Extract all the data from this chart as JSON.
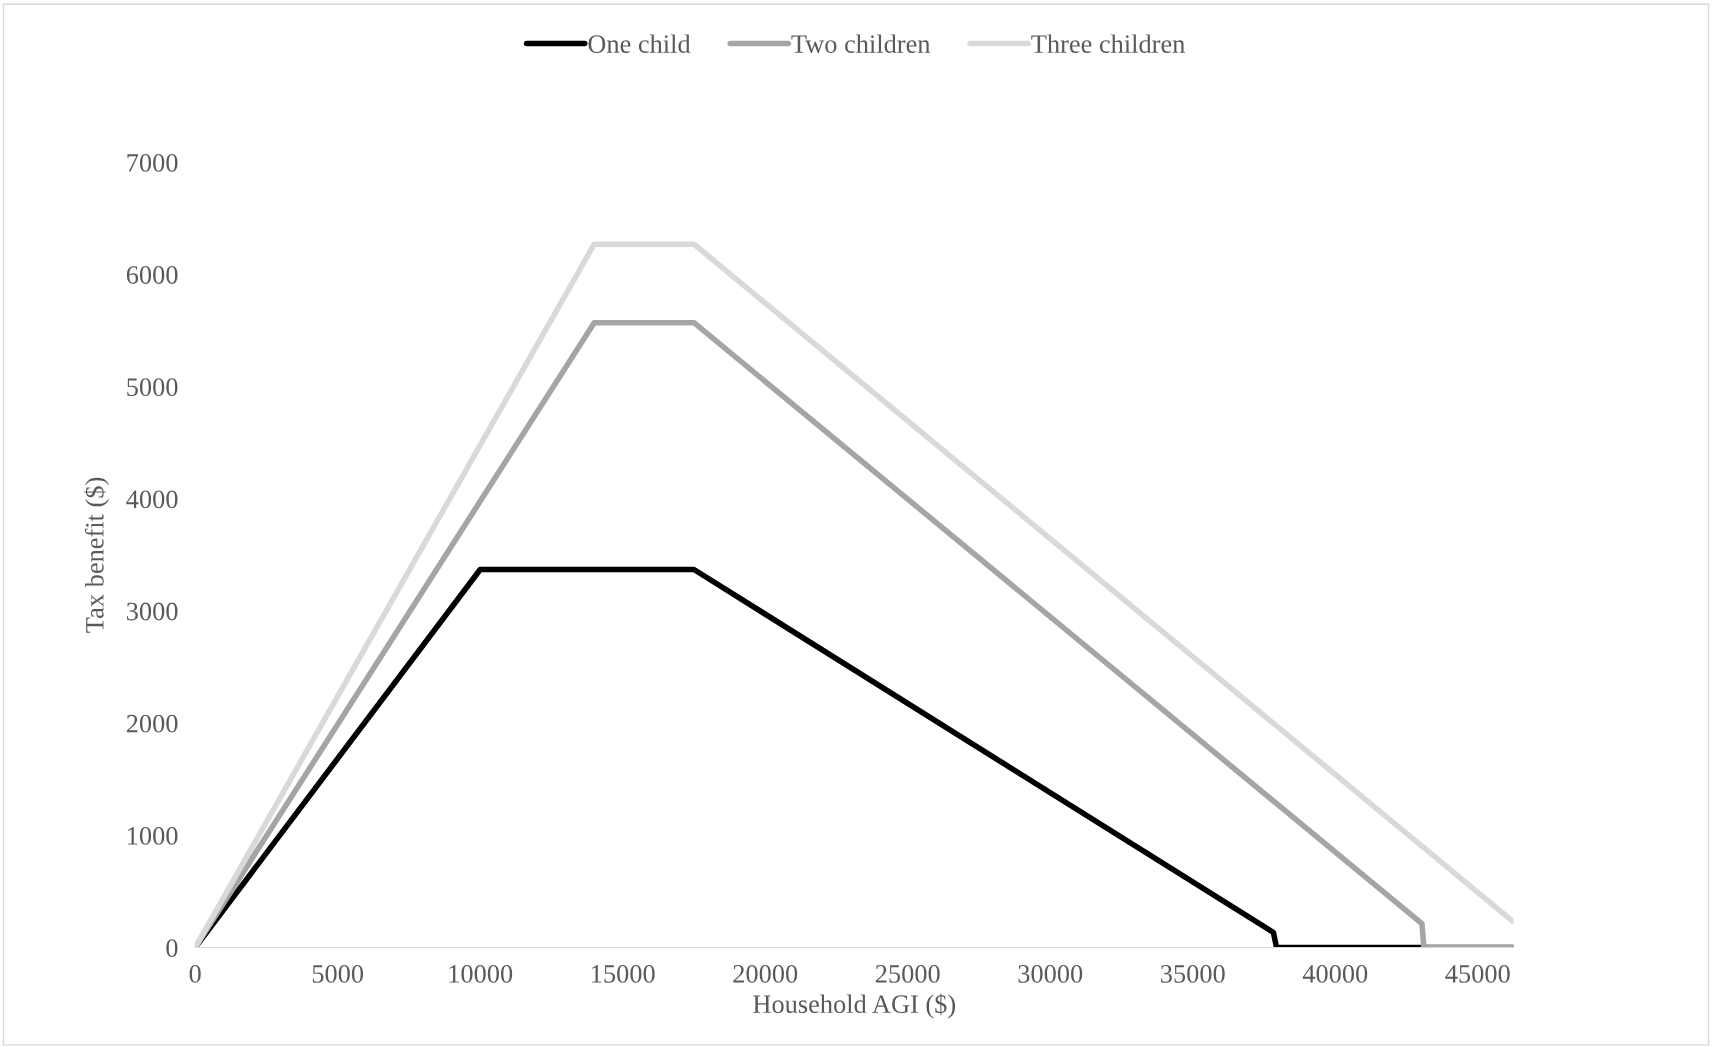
{
  "chart_data": {
    "type": "line",
    "xlabel": "Household AGI ($)",
    "ylabel": "Tax benefit ($)",
    "xlim": [
      0,
      46250
    ],
    "xticks": [
      0,
      5000,
      10000,
      15000,
      20000,
      25000,
      30000,
      35000,
      40000,
      45000
    ],
    "ylim": [
      0,
      7000
    ],
    "yticks": [
      0,
      1000,
      2000,
      3000,
      4000,
      5000,
      6000,
      7000
    ],
    "grid": false,
    "legend": "top",
    "marker": "none",
    "line_style": "solid",
    "series": [
      {
        "name": "One child",
        "color": "#000000",
        "x": [
          0,
          10000,
          17500,
          37830,
          37940,
          46240
        ],
        "values": [
          0,
          3370,
          3370,
          134,
          0,
          0
        ]
      },
      {
        "name": "Two children",
        "color": "#a5a5a5",
        "x": [
          0,
          14000,
          17500,
          43040,
          43110,
          46240
        ],
        "values": [
          0,
          5570,
          5570,
          214,
          0,
          0
        ]
      },
      {
        "name": "Three children",
        "color": "#d9d9d9",
        "x": [
          0,
          14000,
          17500,
          46240
        ],
        "values": [
          0,
          6270,
          6270,
          232
        ]
      }
    ]
  }
}
